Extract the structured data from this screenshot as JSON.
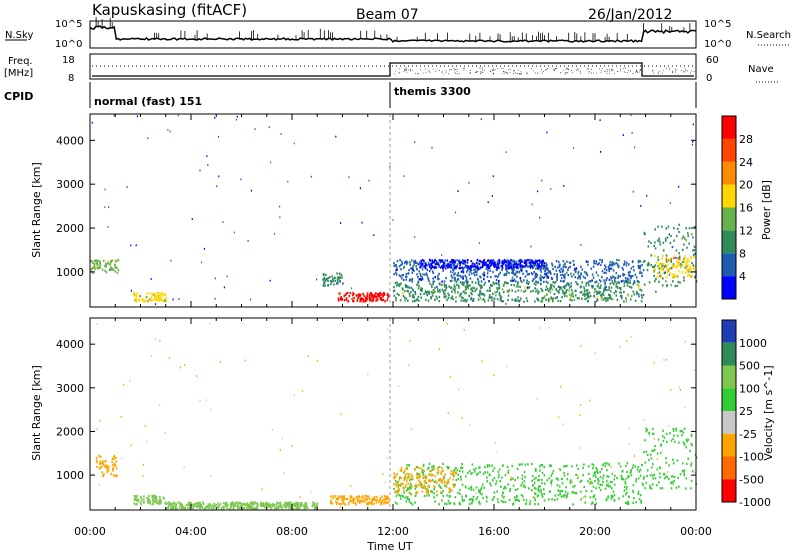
{
  "header": {
    "title": "Kapuskasing (fitACF)",
    "beam": "Beam 07",
    "date": "26/Jan/2012"
  },
  "noise_panel": {
    "left_label": "N.Sky",
    "left_ticks": [
      "10^5",
      "10^0"
    ],
    "right_label": "N.Search",
    "right_ticks": [
      "10^5",
      "10^0"
    ]
  },
  "freq_panel": {
    "left_label_1": "Freq.",
    "left_label_2": "[MHz]",
    "left_ticks": [
      "18",
      "8"
    ],
    "right_label": "Nave",
    "right_ticks": [
      "60",
      "0"
    ]
  },
  "cpid": {
    "label": "CPID",
    "segments": [
      {
        "name": "normal (fast) 151",
        "start_hour": 0
      },
      {
        "name": "themis 3300",
        "start_hour": 12
      }
    ]
  },
  "time_axis": {
    "label": "Time UT",
    "ticks": [
      "00:00",
      "04:00",
      "08:00",
      "12:00",
      "16:00",
      "20:00",
      "00:00"
    ]
  },
  "chart_data": [
    {
      "type": "heatmap",
      "xlabel": "Time UT",
      "ylabel": "Slant Range [km]",
      "xlim": [
        0,
        24
      ],
      "ylim": [
        200,
        4600
      ],
      "yticks": [
        "4000",
        "3000",
        "2000",
        "1000"
      ],
      "colorbar": {
        "label": "Power [dB]",
        "ticks": [
          "28",
          "24",
          "20",
          "16",
          "12",
          "8",
          "4"
        ],
        "colors": [
          "#0000ff",
          "#1e5cb3",
          "#2e8b57",
          "#66b34d",
          "#ffd700",
          "#ff8c00",
          "#ff4500",
          "#ff0000"
        ]
      },
      "regions": [
        {
          "t0": 0.0,
          "t1": 1.1,
          "r0": 1000,
          "r1": 1300,
          "level": 0.45
        },
        {
          "t0": 1.7,
          "t1": 3.0,
          "r0": 350,
          "r1": 550,
          "level": 0.55
        },
        {
          "t0": 9.8,
          "t1": 11.8,
          "r0": 350,
          "r1": 550,
          "level": 0.95
        },
        {
          "t0": 9.2,
          "t1": 10.0,
          "r0": 700,
          "r1": 1000,
          "level": 0.3
        },
        {
          "t0": 12.0,
          "t1": 21.9,
          "r0": 350,
          "r1": 800,
          "level": 0.35
        },
        {
          "t0": 12.0,
          "t1": 21.9,
          "r0": 800,
          "r1": 1300,
          "level": 0.2
        },
        {
          "t0": 13.0,
          "t1": 18.0,
          "r0": 1100,
          "r1": 1300,
          "level": 0.1
        },
        {
          "t0": 21.9,
          "t1": 24.0,
          "r0": 700,
          "r1": 2100,
          "level": 0.3
        },
        {
          "t0": 22.3,
          "t1": 24.0,
          "r0": 900,
          "r1": 1400,
          "level": 0.6
        }
      ]
    },
    {
      "type": "heatmap",
      "xlabel": "Time UT",
      "ylabel": "Slant Range [km]",
      "xlim": [
        0,
        24
      ],
      "ylim": [
        200,
        4600
      ],
      "yticks": [
        "4000",
        "3000",
        "2000",
        "1000"
      ],
      "colorbar": {
        "label": "Velocity [m s^-1]",
        "ticks": [
          "1000",
          "500",
          "100",
          "25",
          "-25",
          "-100",
          "-500",
          "-1000"
        ],
        "colors": [
          "#1e3fb3",
          "#2e8b57",
          "#7ec850",
          "#32cd32",
          "#c8c8c8",
          "#ffa500",
          "#ff6a00",
          "#ff0000"
        ]
      },
      "regions": [
        {
          "t0": 0.2,
          "t1": 1.1,
          "r0": 1000,
          "r1": 1500,
          "level": "-100"
        },
        {
          "t0": 1.7,
          "t1": 3.0,
          "r0": 350,
          "r1": 550,
          "level": "100"
        },
        {
          "t0": 3.0,
          "t1": 9.0,
          "r0": 250,
          "r1": 400,
          "level": "100"
        },
        {
          "t0": 9.5,
          "t1": 11.8,
          "r0": 350,
          "r1": 550,
          "level": "-100"
        },
        {
          "t0": 12.0,
          "t1": 21.9,
          "r0": 350,
          "r1": 1300,
          "level": "25"
        },
        {
          "t0": 12.0,
          "t1": 14.5,
          "r0": 600,
          "r1": 1200,
          "level": "-100"
        },
        {
          "t0": 21.9,
          "t1": 24.0,
          "r0": 700,
          "r1": 2100,
          "level": "25"
        }
      ]
    }
  ]
}
